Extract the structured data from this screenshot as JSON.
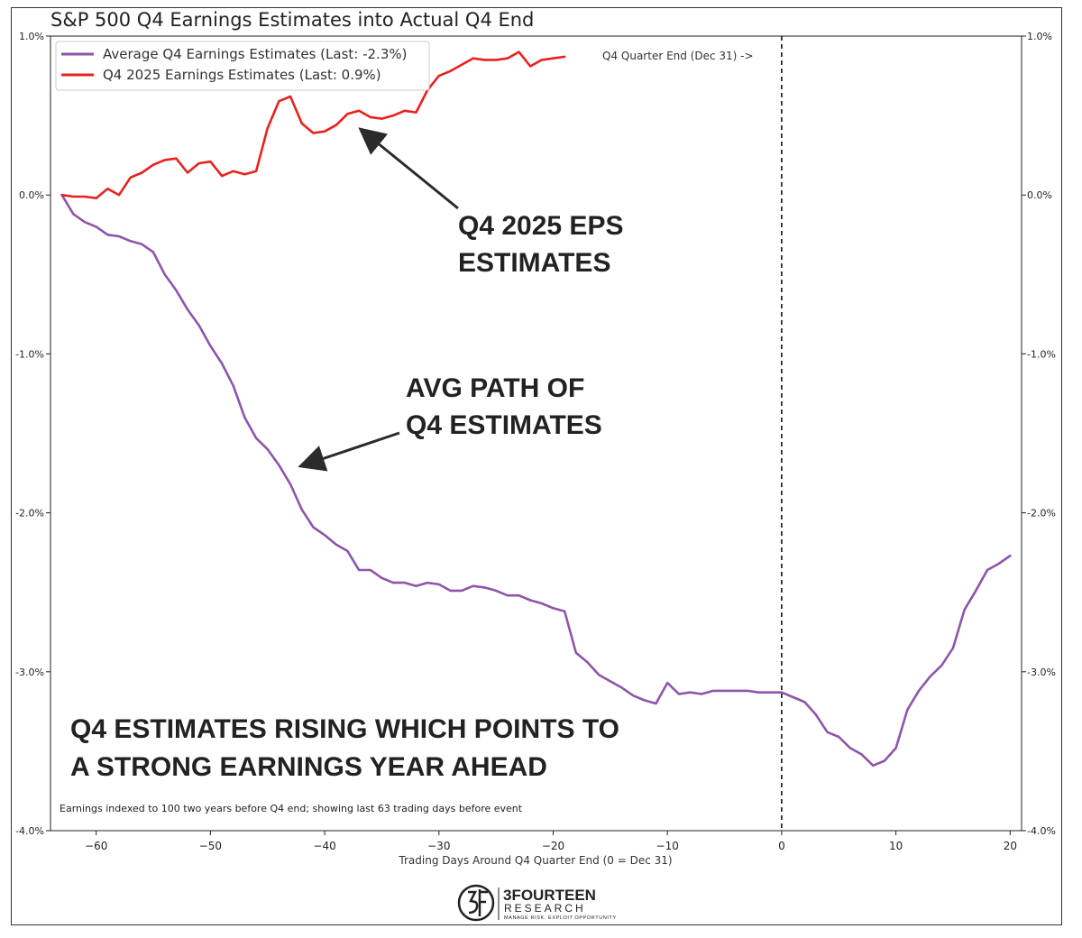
{
  "chart_data": {
    "type": "line",
    "title": "S&P 500 Q4 Earnings Estimates into Actual Q4 End",
    "xlabel": "Trading Days Around Q4 Quarter End (0 = Dec 31)",
    "ylabel": "",
    "xlim": [
      -64,
      21
    ],
    "ylim": [
      -4.0,
      1.0
    ],
    "xticks": [
      -60,
      -50,
      -40,
      -30,
      -20,
      -10,
      0,
      10,
      20
    ],
    "xtick_labels": [
      "−60",
      "−50",
      "−40",
      "−30",
      "−20",
      "−10",
      "0",
      "10",
      "20"
    ],
    "yticks": [
      1.0,
      0.0,
      -1.0,
      -2.0,
      -3.0,
      -4.0
    ],
    "ytick_labels": [
      "1.0%",
      "0.0%",
      "-1.0%",
      "-2.0%",
      "-3.0%",
      "-4.0%"
    ],
    "vline": {
      "x": 0,
      "label": "Q4 Quarter End (Dec 31) ->"
    },
    "legend_position": "top-left",
    "series": [
      {
        "name": "Average Q4 Earnings Estimates (Last: -2.3%)",
        "color": "#8e55aa",
        "x": [
          -63,
          -62,
          -61,
          -60,
          -59,
          -58,
          -57,
          -56,
          -55,
          -54,
          -53,
          -52,
          -51,
          -50,
          -49,
          -48,
          -47,
          -46,
          -45,
          -44,
          -43,
          -42,
          -41,
          -40,
          -39,
          -38,
          -37,
          -36,
          -35,
          -34,
          -33,
          -32,
          -31,
          -30,
          -29,
          -28,
          -27,
          -26,
          -25,
          -24,
          -23,
          -22,
          -21,
          -20,
          -19,
          -18,
          -17,
          -16,
          -15,
          -14,
          -13,
          -12,
          -11,
          -10,
          -9,
          -8,
          -7,
          -6,
          -5,
          -4,
          -3,
          -2,
          -1,
          0,
          1,
          2,
          3,
          4,
          5,
          6,
          7,
          8,
          9,
          10,
          11,
          12,
          13,
          14,
          15,
          16,
          17,
          18,
          19,
          20
        ],
        "values": [
          0.0,
          -0.12,
          -0.17,
          -0.2,
          -0.25,
          -0.26,
          -0.29,
          -0.31,
          -0.36,
          -0.5,
          -0.6,
          -0.72,
          -0.82,
          -0.95,
          -1.06,
          -1.2,
          -1.4,
          -1.53,
          -1.6,
          -1.7,
          -1.82,
          -1.98,
          -2.09,
          -2.14,
          -2.2,
          -2.24,
          -2.36,
          -2.36,
          -2.41,
          -2.44,
          -2.44,
          -2.46,
          -2.44,
          -2.45,
          -2.49,
          -2.49,
          -2.46,
          -2.47,
          -2.49,
          -2.52,
          -2.52,
          -2.55,
          -2.57,
          -2.6,
          -2.62,
          -2.88,
          -2.94,
          -3.02,
          -3.06,
          -3.1,
          -3.15,
          -3.18,
          -3.2,
          -3.07,
          -3.14,
          -3.13,
          -3.14,
          -3.12,
          -3.12,
          -3.12,
          -3.12,
          -3.13,
          -3.13,
          -3.13,
          -3.16,
          -3.19,
          -3.27,
          -3.38,
          -3.41,
          -3.48,
          -3.52,
          -3.59,
          -3.56,
          -3.48,
          -3.24,
          -3.12,
          -3.03,
          -2.96,
          -2.85,
          -2.61,
          -2.49,
          -2.36,
          -2.32,
          -2.27
        ]
      },
      {
        "name": "Q4 2025 Earnings Estimates (Last: 0.9%)",
        "color": "#e8221e",
        "x": [
          -63,
          -62,
          -61,
          -60,
          -59,
          -58,
          -57,
          -56,
          -55,
          -54,
          -53,
          -52,
          -51,
          -50,
          -49,
          -48,
          -47,
          -46,
          -45,
          -44,
          -43,
          -42,
          -41,
          -40,
          -39,
          -38,
          -37,
          -36,
          -35,
          -34,
          -33,
          -32,
          -31,
          -30,
          -29,
          -28,
          -27,
          -26,
          -25,
          -24,
          -23,
          -22,
          -21,
          -20,
          -19
        ],
        "values": [
          0.0,
          -0.01,
          -0.01,
          -0.02,
          0.04,
          0.0,
          0.11,
          0.14,
          0.19,
          0.22,
          0.23,
          0.14,
          0.2,
          0.21,
          0.12,
          0.15,
          0.13,
          0.15,
          0.42,
          0.59,
          0.62,
          0.45,
          0.39,
          0.4,
          0.44,
          0.51,
          0.53,
          0.49,
          0.48,
          0.5,
          0.53,
          0.52,
          0.66,
          0.75,
          0.78,
          0.82,
          0.86,
          0.85,
          0.85,
          0.86,
          0.9,
          0.81,
          0.85,
          0.86,
          0.87
        ]
      }
    ],
    "annotations": {
      "eps_line1": "Q4 2025 EPS",
      "eps_line2": "ESTIMATES",
      "avg_line1": "AVG PATH OF",
      "avg_line2": "Q4 ESTIMATES",
      "rising_line1": "Q4 ESTIMATES RISING WHICH POINTS TO",
      "rising_line2": "A STRONG EARNINGS YEAR AHEAD"
    },
    "footnote": "Earnings indexed to 100 two years before Q4 end; showing last 63 trading days before event"
  },
  "logo": {
    "name": "3FOURTEEN",
    "subtitle": "RESEARCH",
    "tagline": "MANAGE RISK. EXPLOIT OPPORTUNITY"
  }
}
